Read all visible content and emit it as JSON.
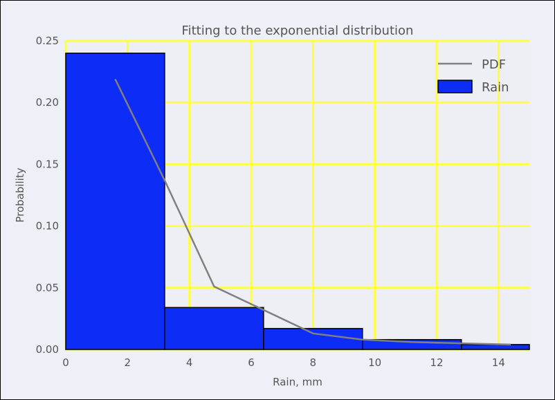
{
  "chart_data": {
    "type": "bar",
    "title": "Fitting to the exponential distribution",
    "xlabel": "Rain, mm",
    "ylabel": "Probability",
    "xlim": [
      0,
      15
    ],
    "ylim": [
      0,
      0.25
    ],
    "xticks": [
      0,
      2,
      4,
      6,
      8,
      10,
      12,
      14
    ],
    "yticks": [
      0.0,
      0.05,
      0.1,
      0.15,
      0.2,
      0.25
    ],
    "xtick_labels": [
      "0",
      "2",
      "4",
      "6",
      "8",
      "10",
      "12",
      "14"
    ],
    "ytick_labels": [
      "0.00",
      "0.05",
      "0.10",
      "0.15",
      "0.20",
      "0.25"
    ],
    "grid": true,
    "legend_placement": "top-right",
    "series": [
      {
        "name": "Rain",
        "kind": "histogram",
        "color": "#0d2cf5",
        "bins": [
          {
            "x0": 0.0,
            "x1": 3.2,
            "value": 0.24
          },
          {
            "x0": 3.2,
            "x1": 6.4,
            "value": 0.034
          },
          {
            "x0": 6.4,
            "x1": 9.6,
            "value": 0.017
          },
          {
            "x0": 9.6,
            "x1": 12.8,
            "value": 0.008
          },
          {
            "x0": 12.8,
            "x1": 15.0,
            "value": 0.004
          }
        ]
      },
      {
        "name": "PDF",
        "kind": "line",
        "color": "#808080",
        "x": [
          1.6,
          3.2,
          4.8,
          6.4,
          8.0,
          9.6,
          11.2,
          12.8,
          14.4
        ],
        "y": [
          0.219,
          0.137,
          0.051,
          0.032,
          0.013,
          0.008,
          0.006,
          0.005,
          0.004
        ]
      }
    ]
  },
  "colors": {
    "plot_background": "#eeeef5",
    "grid": "#ffff40",
    "bar_edge": "#000000"
  }
}
